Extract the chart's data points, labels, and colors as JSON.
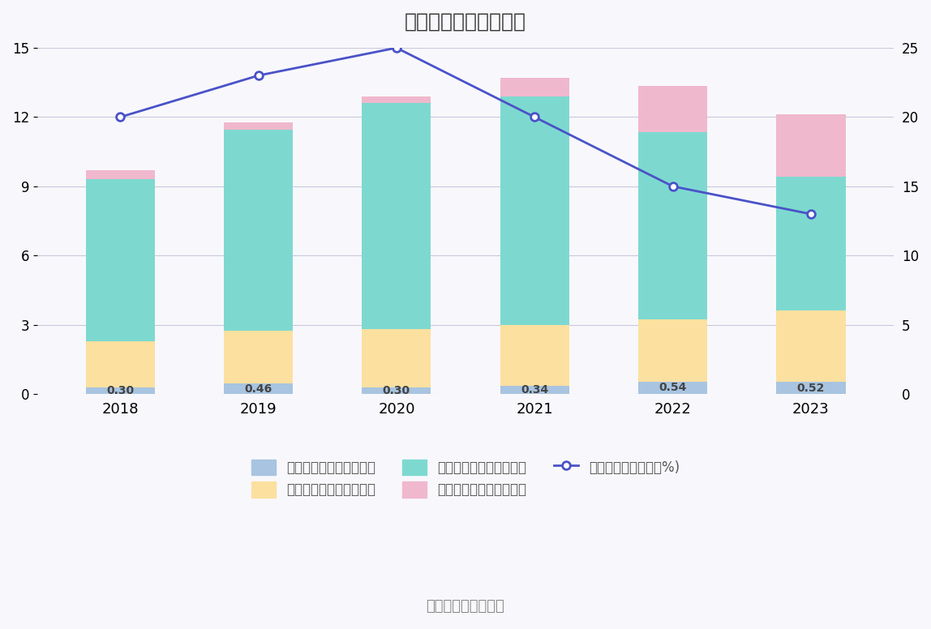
{
  "years": [
    "2018",
    "2019",
    "2020",
    "2021",
    "2022",
    "2023"
  ],
  "sales": [
    0.3,
    0.46,
    0.3,
    0.34,
    0.54,
    0.52
  ],
  "mgmt": [
    2.0,
    2.3,
    2.5,
    2.66,
    2.7,
    3.1
  ],
  "fin": [
    7.0,
    8.7,
    9.8,
    9.9,
    8.1,
    5.8
  ],
  "rd": [
    0.4,
    0.3,
    0.3,
    0.8,
    2.0,
    2.7
  ],
  "rate": [
    20.0,
    23.0,
    25.0,
    20.0,
    15.0,
    13.0
  ],
  "bar_color_sales": "#a8c4e0",
  "bar_color_mgmt": "#fce0a0",
  "bar_color_fin": "#7dd9d0",
  "bar_color_rd": "#f0b8cc",
  "line_color": "#4a52c8",
  "bg_color": "#f8f8fc",
  "title": "历年期间费用变化情况",
  "title_fontsize": 18,
  "left_ylim": [
    0,
    15
  ],
  "right_ylim": [
    0,
    25
  ],
  "left_yticks": [
    0,
    3,
    6,
    9,
    12,
    15
  ],
  "right_yticks": [
    0,
    5,
    10,
    15,
    20,
    25
  ],
  "source_text": "数据来源：恒生聚源",
  "legend_labels": [
    "左轴：销售费用（亿元）",
    "左轴：管理费用（亿元）",
    "左轴：财务费用（亿元）",
    "左轴：研发费用（亿元）",
    "右轴：期间费用率（%)"
  ],
  "bar_width": 0.5,
  "annot_fontsize": 10
}
